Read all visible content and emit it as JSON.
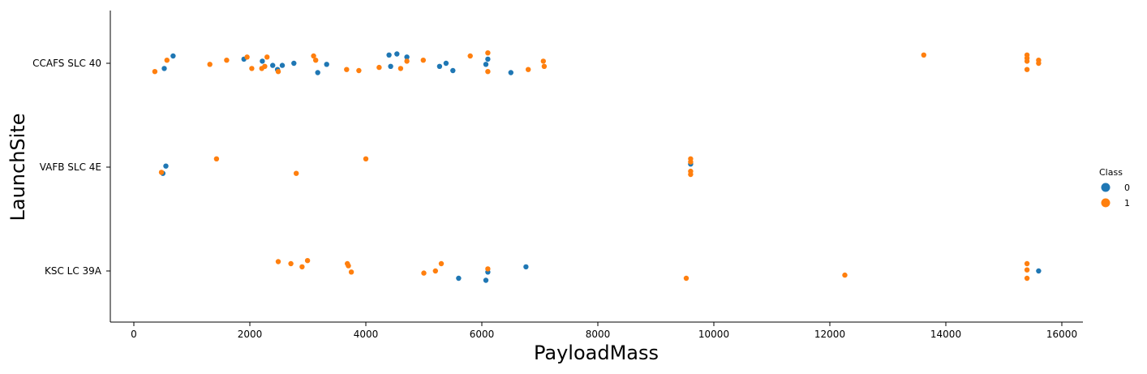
{
  "chart_data": {
    "type": "scatter",
    "title": "",
    "xlabel": "PayloadMass",
    "ylabel": "LaunchSite",
    "categories": [
      "CCAFS SLC 40",
      "VAFB SLC 4E",
      "KSC LC 39A"
    ],
    "xlim": [
      -400,
      16900
    ],
    "xticks": [
      0,
      2000,
      4000,
      6000,
      8000,
      10000,
      12000,
      14000,
      16000
    ],
    "grid": false,
    "legend": {
      "title": "Class",
      "placement": "right"
    },
    "series": [
      {
        "name": "0",
        "color": "#1f77b4",
        "points": [
          [
            525,
            "CCAFS SLC 40",
            0.05
          ],
          [
            677,
            "CCAFS SLC 40",
            -0.07
          ],
          [
            1898,
            "CCAFS SLC 40",
            -0.04
          ],
          [
            2216,
            "CCAFS SLC 40",
            -0.02
          ],
          [
            2395,
            "CCAFS SLC 40",
            0.02
          ],
          [
            2477,
            "CCAFS SLC 40",
            0.06
          ],
          [
            2560,
            "CCAFS SLC 40",
            0.02
          ],
          [
            2760,
            "CCAFS SLC 40",
            0.0
          ],
          [
            3170,
            "CCAFS SLC 40",
            0.09
          ],
          [
            3325,
            "CCAFS SLC 40",
            0.01
          ],
          [
            4428,
            "CCAFS SLC 40",
            0.03
          ],
          [
            4400,
            "CCAFS SLC 40",
            -0.08
          ],
          [
            4535,
            "CCAFS SLC 40",
            -0.09
          ],
          [
            4707,
            "CCAFS SLC 40",
            -0.06
          ],
          [
            5271,
            "CCAFS SLC 40",
            0.03
          ],
          [
            5383,
            "CCAFS SLC 40",
            0.0
          ],
          [
            5500,
            "CCAFS SLC 40",
            0.07
          ],
          [
            6070,
            "CCAFS SLC 40",
            0.01
          ],
          [
            6104,
            "CCAFS SLC 40",
            -0.04
          ],
          [
            6500,
            "CCAFS SLC 40",
            0.09
          ],
          [
            500,
            "VAFB SLC 4E",
            0.06
          ],
          [
            553,
            "VAFB SLC 4E",
            -0.01
          ],
          [
            9600,
            "VAFB SLC 4E",
            -0.03
          ],
          [
            5600,
            "KSC LC 39A",
            0.07
          ],
          [
            6070,
            "KSC LC 39A",
            0.09
          ],
          [
            6104,
            "KSC LC 39A",
            0.01
          ],
          [
            6761,
            "KSC LC 39A",
            -0.04
          ],
          [
            15600,
            "KSC LC 39A",
            0.0
          ]
        ]
      },
      {
        "name": "1",
        "color": "#ff7f0e",
        "points": [
          [
            362,
            "CCAFS SLC 40",
            0.08
          ],
          [
            570,
            "CCAFS SLC 40",
            -0.03
          ],
          [
            1310,
            "CCAFS SLC 40",
            0.01
          ],
          [
            1600,
            "CCAFS SLC 40",
            -0.03
          ],
          [
            1952,
            "CCAFS SLC 40",
            -0.06
          ],
          [
            2034,
            "CCAFS SLC 40",
            0.05
          ],
          [
            2205,
            "CCAFS SLC 40",
            0.05
          ],
          [
            2257,
            "CCAFS SLC 40",
            0.03
          ],
          [
            2296,
            "CCAFS SLC 40",
            -0.06
          ],
          [
            2490,
            "CCAFS SLC 40",
            0.08
          ],
          [
            3100,
            "CCAFS SLC 40",
            -0.07
          ],
          [
            3136,
            "CCAFS SLC 40",
            -0.03
          ],
          [
            3669,
            "CCAFS SLC 40",
            0.06
          ],
          [
            3880,
            "CCAFS SLC 40",
            0.07
          ],
          [
            4230,
            "CCAFS SLC 40",
            0.04
          ],
          [
            4600,
            "CCAFS SLC 40",
            0.05
          ],
          [
            4707,
            "CCAFS SLC 40",
            -0.02
          ],
          [
            4990,
            "CCAFS SLC 40",
            -0.03
          ],
          [
            5800,
            "CCAFS SLC 40",
            -0.07
          ],
          [
            6104,
            "CCAFS SLC 40",
            -0.1
          ],
          [
            6104,
            "CCAFS SLC 40",
            0.08
          ],
          [
            6800,
            "CCAFS SLC 40",
            0.06
          ],
          [
            7060,
            "CCAFS SLC 40",
            -0.02
          ],
          [
            7076,
            "CCAFS SLC 40",
            0.03
          ],
          [
            13620,
            "CCAFS SLC 40",
            -0.08
          ],
          [
            15400,
            "CCAFS SLC 40",
            -0.08
          ],
          [
            15400,
            "CCAFS SLC 40",
            -0.05
          ],
          [
            15400,
            "CCAFS SLC 40",
            -0.02
          ],
          [
            15400,
            "CCAFS SLC 40",
            0.06
          ],
          [
            15600,
            "CCAFS SLC 40",
            -0.03
          ],
          [
            15600,
            "CCAFS SLC 40",
            0.0
          ],
          [
            1425,
            "VAFB SLC 4E",
            -0.08
          ],
          [
            475,
            "VAFB SLC 4E",
            0.05
          ],
          [
            2800,
            "VAFB SLC 4E",
            0.06
          ],
          [
            4000,
            "VAFB SLC 4E",
            -0.08
          ],
          [
            9600,
            "VAFB SLC 4E",
            -0.08
          ],
          [
            9600,
            "VAFB SLC 4E",
            -0.05
          ],
          [
            9600,
            "VAFB SLC 4E",
            0.04
          ],
          [
            9600,
            "VAFB SLC 4E",
            0.07
          ],
          [
            2490,
            "KSC LC 39A",
            -0.09
          ],
          [
            2708,
            "KSC LC 39A",
            -0.07
          ],
          [
            2900,
            "KSC LC 39A",
            -0.04
          ],
          [
            2995,
            "KSC LC 39A",
            -0.1
          ],
          [
            3681,
            "KSC LC 39A",
            -0.07
          ],
          [
            3700,
            "KSC LC 39A",
            -0.05
          ],
          [
            3750,
            "KSC LC 39A",
            0.01
          ],
          [
            5000,
            "KSC LC 39A",
            0.02
          ],
          [
            5200,
            "KSC LC 39A",
            0.0
          ],
          [
            5300,
            "KSC LC 39A",
            -0.07
          ],
          [
            6104,
            "KSC LC 39A",
            -0.02
          ],
          [
            9525,
            "KSC LC 39A",
            0.07
          ],
          [
            12259,
            "KSC LC 39A",
            0.04
          ],
          [
            15400,
            "KSC LC 39A",
            -0.07
          ],
          [
            15400,
            "KSC LC 39A",
            -0.01
          ],
          [
            15400,
            "KSC LC 39A",
            0.07
          ]
        ]
      }
    ]
  }
}
